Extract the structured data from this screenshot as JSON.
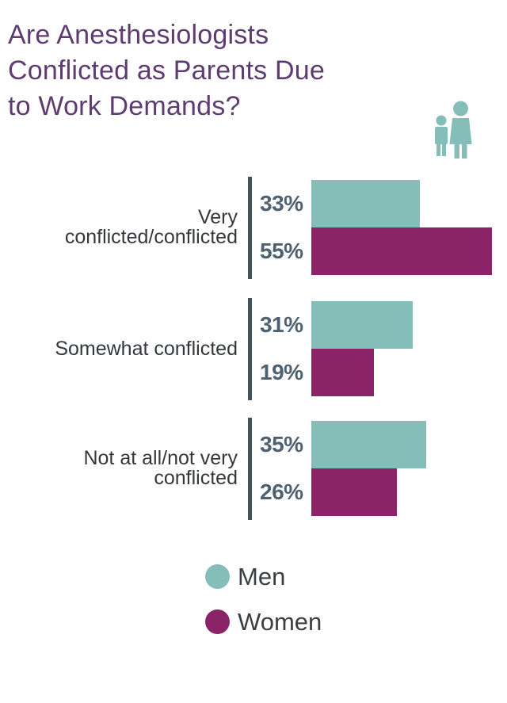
{
  "colors": {
    "men": "#85BDB9",
    "women": "#8B2368",
    "title": "#5E3C72",
    "category_label": "#34383C",
    "value_label": "#4E6170",
    "axis_line": "#42525D",
    "legend_label": "#3C3F42",
    "background": "#FFFFFF"
  },
  "title": {
    "text": "Are Anesthesiologists Conflicted as Parents Due to Work Demands?",
    "lines": [
      "Are Anesthesiologists",
      "Conflicted as Parents Due",
      "to Work Demands?"
    ]
  },
  "header_icon": {
    "name": "parent-and-child-icon",
    "color": "#85BDB9"
  },
  "chart_data": {
    "type": "bar",
    "orientation": "horizontal",
    "unit": "percent",
    "title": "Are Anesthesiologists Conflicted as Parents Due to Work Demands?",
    "categories": [
      "Very conflicted/conflicted",
      "Somewhat conflicted",
      "Not at all/not very conflicted"
    ],
    "category_lines": [
      [
        "Very",
        "conflicted/conflicted"
      ],
      [
        "Somewhat conflicted"
      ],
      [
        "Not at all/not very",
        "conflicted"
      ]
    ],
    "series": [
      {
        "name": "Men",
        "color": "#85BDB9",
        "values": [
          33,
          31,
          35
        ]
      },
      {
        "name": "Women",
        "color": "#8B2368",
        "values": [
          55,
          19,
          26
        ]
      }
    ],
    "value_labels": [
      [
        "33%",
        "55%"
      ],
      [
        "31%",
        "19%"
      ],
      [
        "35%",
        "26%"
      ]
    ],
    "xlim": [
      0,
      60
    ],
    "grid": false,
    "legend_position": "bottom"
  },
  "legend": {
    "items": [
      {
        "label": "Men",
        "color": "#85BDB9"
      },
      {
        "label": "Women",
        "color": "#8B2368"
      }
    ]
  }
}
